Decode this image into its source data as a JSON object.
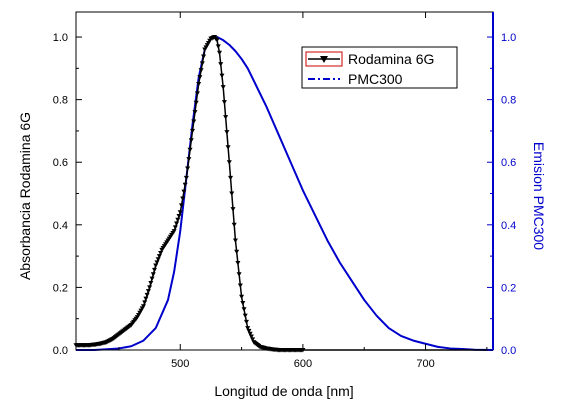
{
  "chart_data": {
    "type": "line",
    "xlabel": "Longitud de onda [nm]",
    "ylabel_left": "Absorbancia Rodamina 6G",
    "ylabel_right": "Emision PMC300",
    "xlim": [
      415,
      755
    ],
    "ylim_left": [
      0,
      1.08
    ],
    "ylim_right": [
      0,
      1.08
    ],
    "x_ticks": [
      500,
      600,
      700
    ],
    "x_tick_labels": [
      "500",
      "600",
      "700"
    ],
    "y_ticks": [
      0.0,
      0.2,
      0.4,
      0.6,
      0.8,
      1.0
    ],
    "y_tick_labels": [
      "0.0",
      "0.2",
      "0.4",
      "0.6",
      "0.8",
      "1.0"
    ],
    "legend_placement": "top-right",
    "colors": {
      "left_axis": "#000000",
      "right_axis": "#0000cc"
    },
    "series": [
      {
        "name": "Rodamina 6G",
        "axis": "left",
        "color": "#000000",
        "marker": "down-triangle",
        "x": [
          415,
          420,
          425,
          430,
          435,
          440,
          445,
          450,
          455,
          460,
          465,
          470,
          475,
          480,
          485,
          490,
          495,
          500,
          505,
          510,
          515,
          520,
          525,
          528,
          530,
          532,
          535,
          540,
          545,
          550,
          555,
          560,
          565,
          570,
          575,
          580,
          590,
          600,
          650,
          700,
          755
        ],
        "y": [
          0.015,
          0.015,
          0.015,
          0.017,
          0.02,
          0.025,
          0.035,
          0.05,
          0.065,
          0.08,
          0.105,
          0.14,
          0.2,
          0.27,
          0.32,
          0.35,
          0.38,
          0.44,
          0.55,
          0.7,
          0.85,
          0.96,
          0.995,
          1.0,
          0.99,
          0.95,
          0.84,
          0.6,
          0.35,
          0.17,
          0.07,
          0.025,
          0.01,
          0.005,
          0.002,
          0.0,
          0.0,
          0.0,
          0.0,
          0.0,
          0.0
        ]
      },
      {
        "name": "PMC300",
        "axis": "right",
        "color": "#0000cc",
        "marker": "none",
        "x": [
          415,
          430,
          450,
          460,
          470,
          480,
          490,
          495,
          500,
          505,
          510,
          515,
          520,
          525,
          530,
          535,
          540,
          545,
          550,
          555,
          560,
          570,
          580,
          590,
          600,
          610,
          620,
          630,
          640,
          650,
          660,
          670,
          680,
          690,
          700,
          710,
          720,
          730,
          740,
          755
        ],
        "y": [
          0.0,
          0.0,
          0.005,
          0.012,
          0.03,
          0.07,
          0.16,
          0.25,
          0.38,
          0.55,
          0.72,
          0.87,
          0.96,
          0.995,
          1.0,
          0.99,
          0.975,
          0.955,
          0.93,
          0.9,
          0.86,
          0.78,
          0.69,
          0.6,
          0.51,
          0.43,
          0.35,
          0.28,
          0.22,
          0.16,
          0.11,
          0.07,
          0.045,
          0.03,
          0.02,
          0.01,
          0.005,
          0.003,
          0.001,
          0.0
        ]
      }
    ]
  }
}
